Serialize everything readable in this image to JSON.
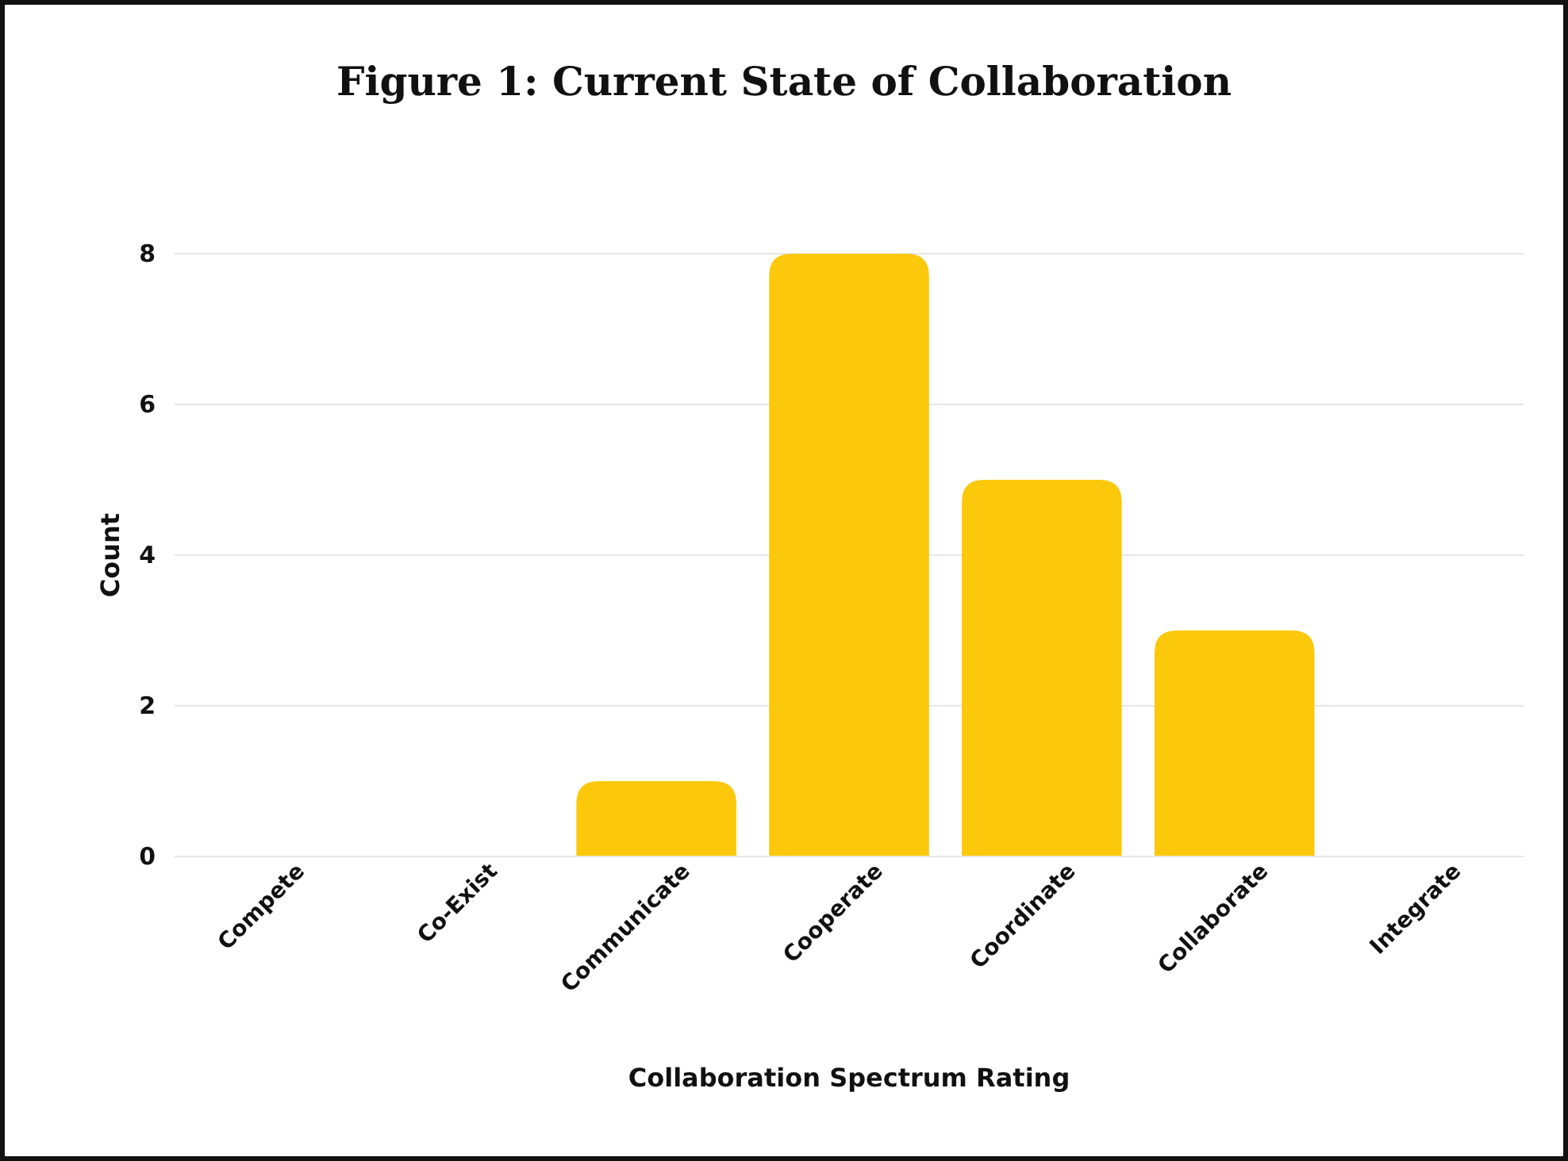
{
  "chart_data": {
    "type": "bar",
    "title": "Figure 1: Current State of Collaboration",
    "xlabel": "Collaboration Spectrum Rating",
    "ylabel": "Count",
    "categories": [
      "Compete",
      "Co-Exist",
      "Communicate",
      "Cooperate",
      "Coordinate",
      "Collaborate",
      "Integrate"
    ],
    "values": [
      0,
      0,
      1,
      8,
      5,
      3,
      0
    ],
    "color": "#fcc80c",
    "ylim": [
      0,
      8
    ],
    "yticks": [
      0,
      2,
      4,
      6,
      8
    ],
    "grid": "y"
  }
}
